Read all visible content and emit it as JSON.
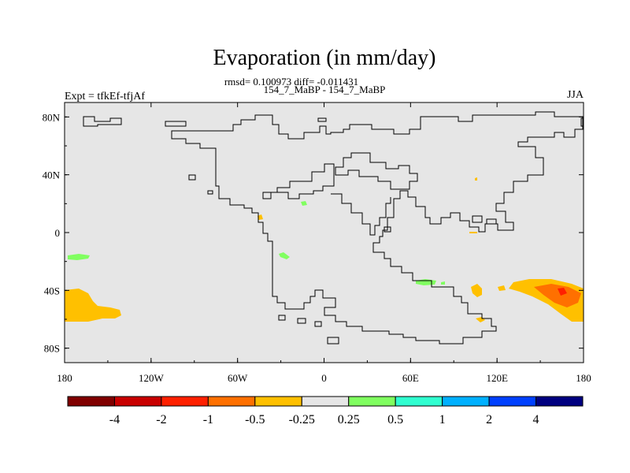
{
  "title": "Evaporation (in mm/day)",
  "stats_line": "rmsd= 0.100973 diff= -0.011431",
  "periods": "154_7_MaBP - 154_7_MaBP",
  "experiment": "Expt = tfkEf-tfjAf",
  "season": "JJA",
  "chart_data": {
    "type": "heatmap",
    "projection": "cylindrical-equidistant",
    "x_ticks": [
      "180",
      "120W",
      "60W",
      "0",
      "60E",
      "120E",
      "180"
    ],
    "y_ticks": [
      "80N",
      "40N",
      "0",
      "40S",
      "80S"
    ],
    "xlim": [
      -180,
      180
    ],
    "ylim": [
      -90,
      90
    ],
    "colorbar": {
      "colors": [
        "#800000",
        "#c80000",
        "#ff2000",
        "#ff7000",
        "#ffc000",
        "#e6e6e6",
        "#80ff60",
        "#30ffd0",
        "#00b0ff",
        "#0040ff",
        "#000080"
      ],
      "labels": [
        "-4",
        "-2",
        "-1",
        "-0.5",
        "-0.25",
        "0.25",
        "0.5",
        "1",
        "2",
        "4"
      ]
    },
    "background_color": "#e6e6e6"
  }
}
